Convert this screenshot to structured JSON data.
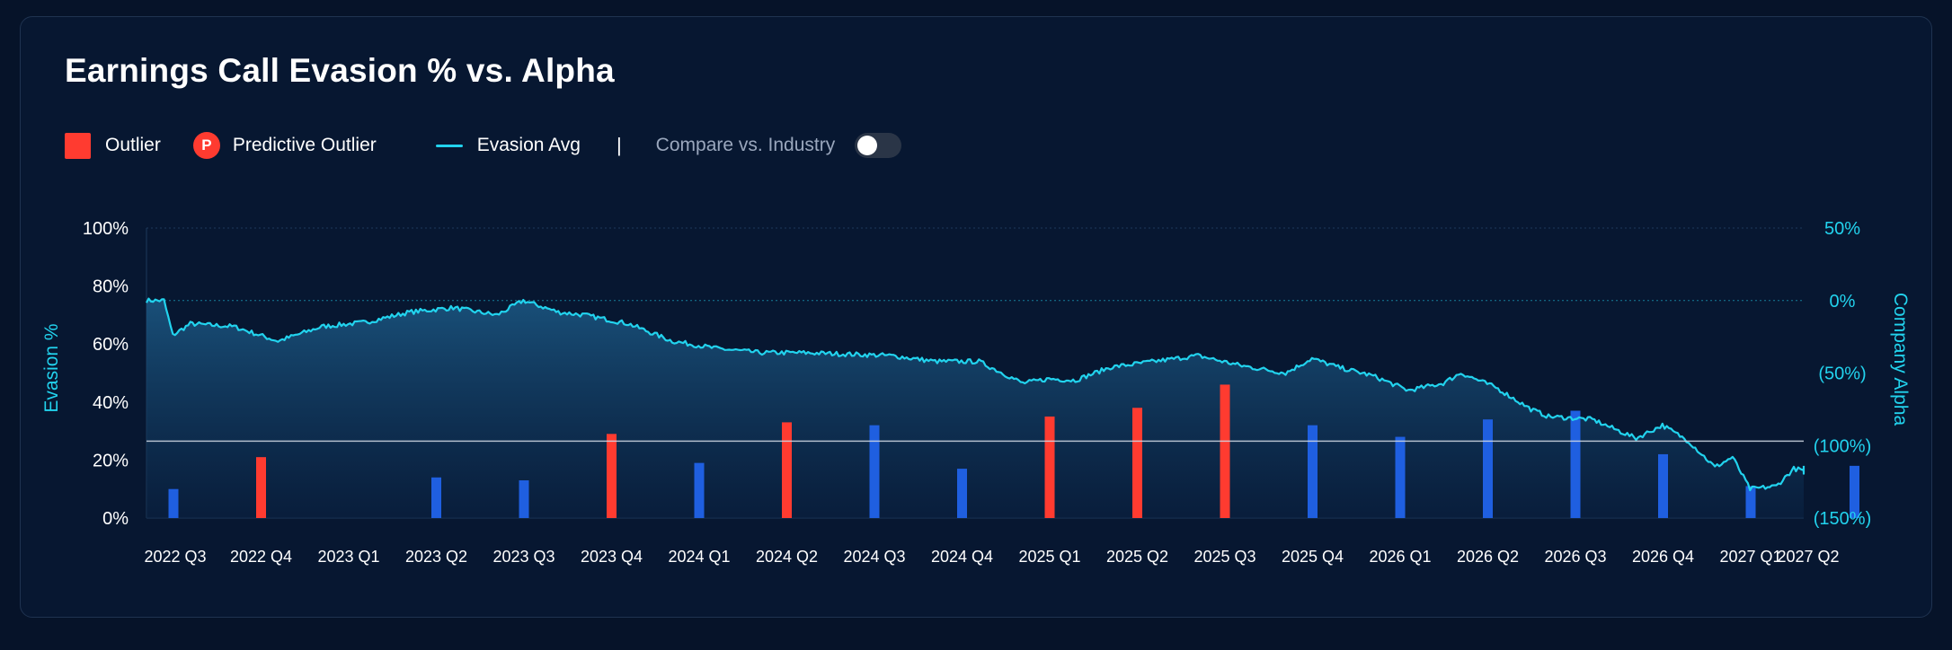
{
  "title": "Earnings Call Evasion % vs. Alpha",
  "legend": {
    "outlier": "Outlier",
    "predictive_badge": "P",
    "predictive_outlier": "Predictive Outlier",
    "evasion_avg": "Evasion Avg",
    "separator": "|",
    "compare_label": "Compare vs. Industry",
    "compare_enabled": false
  },
  "colors": {
    "background": "#061329",
    "outlier": "#ff3b30",
    "normal_bar": "#1f5fe0",
    "line": "#22d3ee",
    "reference_line": "#d0d8e4"
  },
  "chart_data": {
    "type": "bar",
    "categories": [
      "2022 Q3",
      "2022 Q4",
      "2023 Q1",
      "2023 Q2",
      "2023 Q3",
      "2023 Q4",
      "2024 Q1",
      "2024 Q2",
      "2024 Q3",
      "2024 Q4",
      "2025 Q1",
      "2025 Q2",
      "2025 Q3",
      "2025 Q4",
      "2026 Q1",
      "2026 Q2",
      "2026 Q3",
      "2026 Q4",
      "2027 Q1",
      "2027 Q2"
    ],
    "series": [
      {
        "axis": "left",
        "values": [
          10,
          21,
          0,
          14,
          13,
          29,
          19,
          33,
          32,
          17,
          35,
          38,
          46,
          32,
          28,
          34,
          37,
          22,
          11,
          18
        ],
        "outlier": [
          false,
          true,
          false,
          false,
          false,
          true,
          false,
          true,
          false,
          false,
          true,
          true,
          true,
          false,
          false,
          false,
          false,
          false,
          false,
          false
        ]
      },
      {
        "name": "Evasion Avg",
        "axis": "right",
        "type": "line",
        "x": [
          0,
          0.2,
          0.3,
          0.5,
          1,
          1.5,
          2,
          2.5,
          3,
          3.5,
          4,
          4.3,
          4.7,
          5,
          5.5,
          6,
          6.5,
          7,
          7.5,
          8,
          8.5,
          9,
          9.5,
          10,
          10.3,
          10.6,
          11,
          11.5,
          12,
          12.5,
          13,
          13.3,
          13.6,
          14,
          14.4,
          14.8,
          15,
          15.4,
          15.8,
          16,
          16.5,
          17,
          17.3,
          17.6,
          17.9,
          18.1,
          18.3,
          18.6,
          18.8,
          19,
          19.1
        ],
        "y": [
          0,
          0,
          -24,
          -16,
          -18,
          -28,
          -18,
          -15,
          -8,
          -5,
          -10,
          0,
          -8,
          -10,
          -16,
          -28,
          -33,
          -36,
          -36,
          -37,
          -38,
          -42,
          -42,
          -57,
          -54,
          -55,
          -46,
          -42,
          -38,
          -45,
          -50,
          -40,
          -46,
          -52,
          -62,
          -57,
          -50,
          -60,
          -75,
          -80,
          -82,
          -95,
          -86,
          -97,
          -115,
          -108,
          -130,
          -128,
          -116,
          -118,
          -114
        ]
      }
    ],
    "ylabel": "Evasion %",
    "ylabel_right": "Company Alpha",
    "ylim": [
      0,
      100
    ],
    "yticks": [
      "0%",
      "20%",
      "40%",
      "60%",
      "80%",
      "100%"
    ],
    "ylim_right": [
      -150,
      50
    ],
    "yticks_right": [
      "(150%)",
      "(100%)",
      "(50%)",
      "0%",
      "50%"
    ],
    "reference_line_value": 26.5,
    "legend_position": "top-left"
  }
}
